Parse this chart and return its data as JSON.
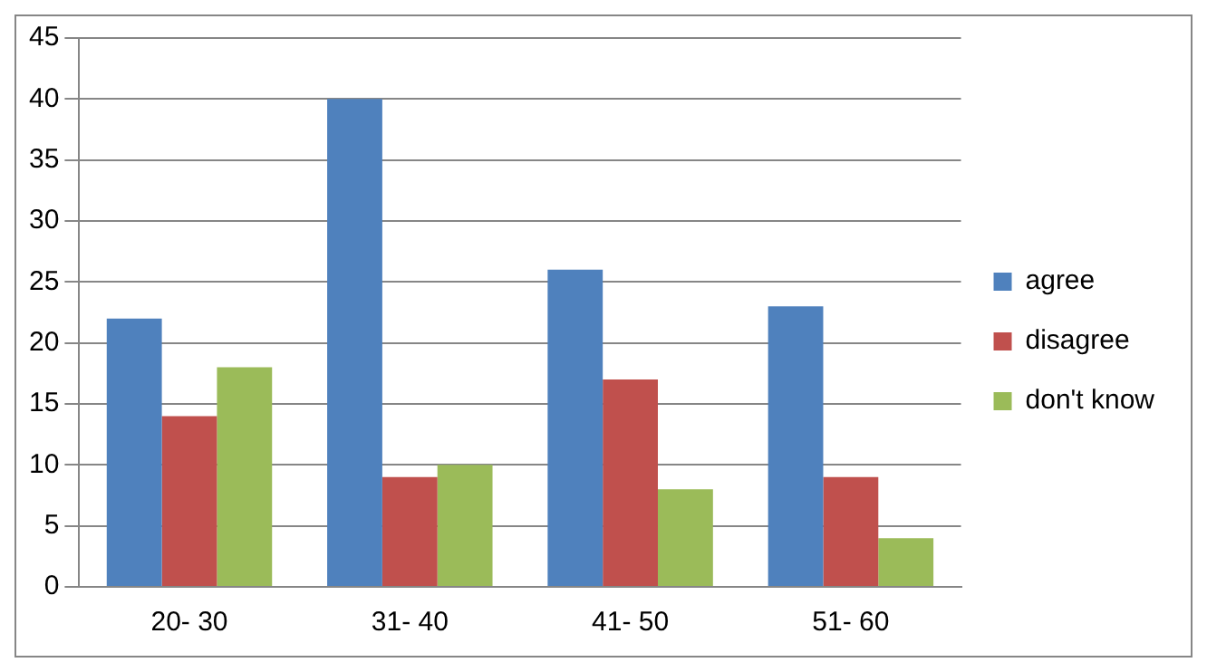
{
  "chart_data": {
    "type": "bar",
    "categories": [
      "20- 30",
      "31- 40",
      "41- 50",
      "51- 60"
    ],
    "series": [
      {
        "name": "agree",
        "color": "#4f81bd",
        "values": [
          22,
          40,
          26,
          23
        ]
      },
      {
        "name": "disagree",
        "color": "#c0504d",
        "values": [
          14,
          9,
          17,
          9
        ]
      },
      {
        "name": "don't know",
        "color": "#9bbb59",
        "values": [
          18,
          10,
          8,
          4
        ]
      }
    ],
    "ylim": [
      0,
      45
    ],
    "yticks": [
      0,
      5,
      10,
      15,
      20,
      25,
      30,
      35,
      40,
      45
    ],
    "grid": "y",
    "legend": "right"
  }
}
